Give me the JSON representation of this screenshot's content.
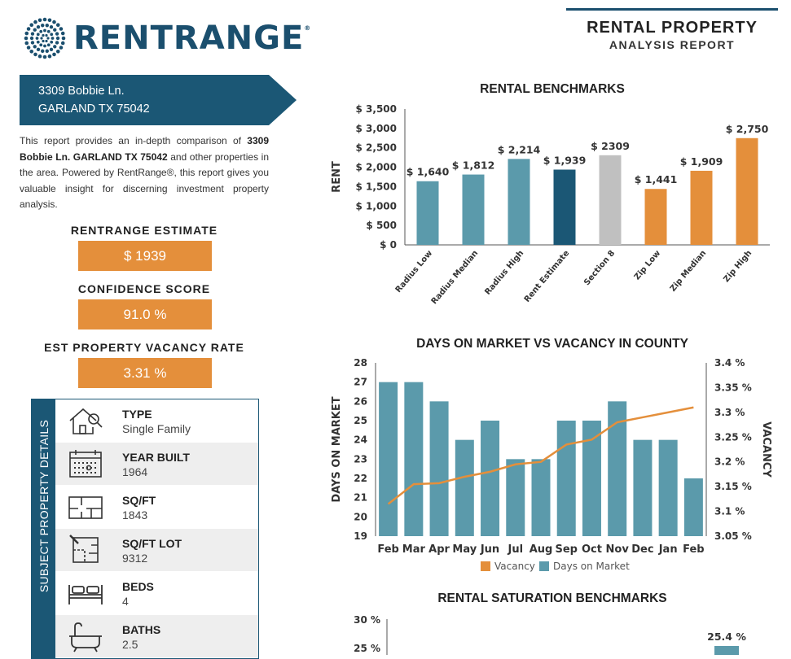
{
  "logo": {
    "text": "RENTRANGE",
    "trademark": "®"
  },
  "report": {
    "title_line1": "RENTAL PROPERTY",
    "title_line2": "ANALYSIS REPORT"
  },
  "address": {
    "line1": "3309 Bobbie Ln.",
    "line2": "GARLAND TX 75042"
  },
  "intro": {
    "before": "This report provides an in-depth comparison of ",
    "bold": "3309 Bobbie Ln. GARLAND TX 75042",
    "after": " and other properties in the area. Powered by RentRange®, this report gives you valuable insight for discerning investment property analysis."
  },
  "metrics": {
    "estimate_label": "RENTRANGE ESTIMATE",
    "estimate_value": "$ 1939",
    "confidence_label": "CONFIDENCE SCORE",
    "confidence_value": "91.0 %",
    "vacancy_label": "EST PROPERTY VACANCY RATE",
    "vacancy_value": "3.31 %"
  },
  "details": {
    "side_title": "SUBJECT PROPERTY DETAILS",
    "rows": [
      {
        "icon": "house-search-icon",
        "label": "TYPE",
        "value": "Single Family"
      },
      {
        "icon": "calendar-icon",
        "label": "YEAR BUILT",
        "value": "1964"
      },
      {
        "icon": "floorplan-icon",
        "label": "SQ/FT",
        "value": "1843"
      },
      {
        "icon": "lot-plan-icon",
        "label": "SQ/FT LOT",
        "value": "9312"
      },
      {
        "icon": "bed-icon",
        "label": "BEDS",
        "value": "4"
      },
      {
        "icon": "bathtub-icon",
        "label": "BATHS",
        "value": "2.5"
      }
    ]
  },
  "colors": {
    "navy": "#1b5775",
    "orange": "#e48f3b",
    "teal": "#5b9aab",
    "gray": "#c0c0c0",
    "dark_blue": "#1b5775"
  },
  "chart_data": [
    {
      "type": "bar",
      "title": "RENTAL BENCHMARKS",
      "ylabel": "RENT",
      "ylim": [
        0,
        3500
      ],
      "yticks": [
        "$ 0",
        "$ 500",
        "$ 1,000",
        "$ 1,500",
        "$ 2,000",
        "$ 2,500",
        "$ 3,000",
        "$ 3,500"
      ],
      "categories": [
        "Radius Low",
        "Radius Median",
        "Radius High",
        "Rent Estimate",
        "Section 8",
        "Zip Low",
        "Zip Median",
        "Zip High"
      ],
      "values": [
        1640,
        1812,
        2214,
        1939,
        2309,
        1441,
        1909,
        2750
      ],
      "labels": [
        "$ 1,640",
        "$ 1,812",
        "$ 2,214",
        "$ 1,939",
        "$ 2309",
        "$ 1,441",
        "$ 1,909",
        "$ 2,750"
      ],
      "bar_colors": [
        "#5b9aab",
        "#5b9aab",
        "#5b9aab",
        "#1b5775",
        "#c0c0c0",
        "#e48f3b",
        "#e48f3b",
        "#e48f3b"
      ]
    },
    {
      "type": "bar+line",
      "title": "DAYS ON MARKET VS VACANCY IN COUNTY",
      "ylabel": "DAYS ON MARKET",
      "y2label": "VACANCY",
      "ylim": [
        19,
        28
      ],
      "yticks": [
        "19",
        "20",
        "21",
        "22",
        "23",
        "24",
        "25",
        "26",
        "27",
        "28"
      ],
      "y2lim": [
        3.05,
        3.4
      ],
      "y2ticks": [
        "3.05 %",
        "3.1 %",
        "3.15 %",
        "3.2 %",
        "3.25 %",
        "3.3 %",
        "3.35 %",
        "3.4 %"
      ],
      "categories": [
        "Feb",
        "Mar",
        "Apr",
        "May",
        "Jun",
        "Jul",
        "Aug",
        "Sep",
        "Oct",
        "Nov",
        "Dec",
        "Jan",
        "Feb"
      ],
      "series": [
        {
          "name": "Days on Market",
          "type": "bar",
          "values": [
            27,
            27,
            26,
            24,
            25,
            23,
            23,
            25,
            25,
            26,
            24,
            24,
            22
          ]
        },
        {
          "name": "Vacancy",
          "type": "line",
          "values": [
            3.115,
            3.155,
            3.157,
            3.17,
            3.18,
            3.195,
            3.2,
            3.235,
            3.245,
            3.28,
            3.29,
            3.3,
            3.31
          ]
        }
      ],
      "legend": [
        "Vacancy",
        "Days on Market"
      ]
    },
    {
      "type": "bar",
      "title": "RENTAL SATURATION BENCHMARKS",
      "yticks": [
        "30 %",
        "25 %"
      ],
      "visible_label": "25.4 %",
      "values": [
        25.4
      ]
    }
  ]
}
